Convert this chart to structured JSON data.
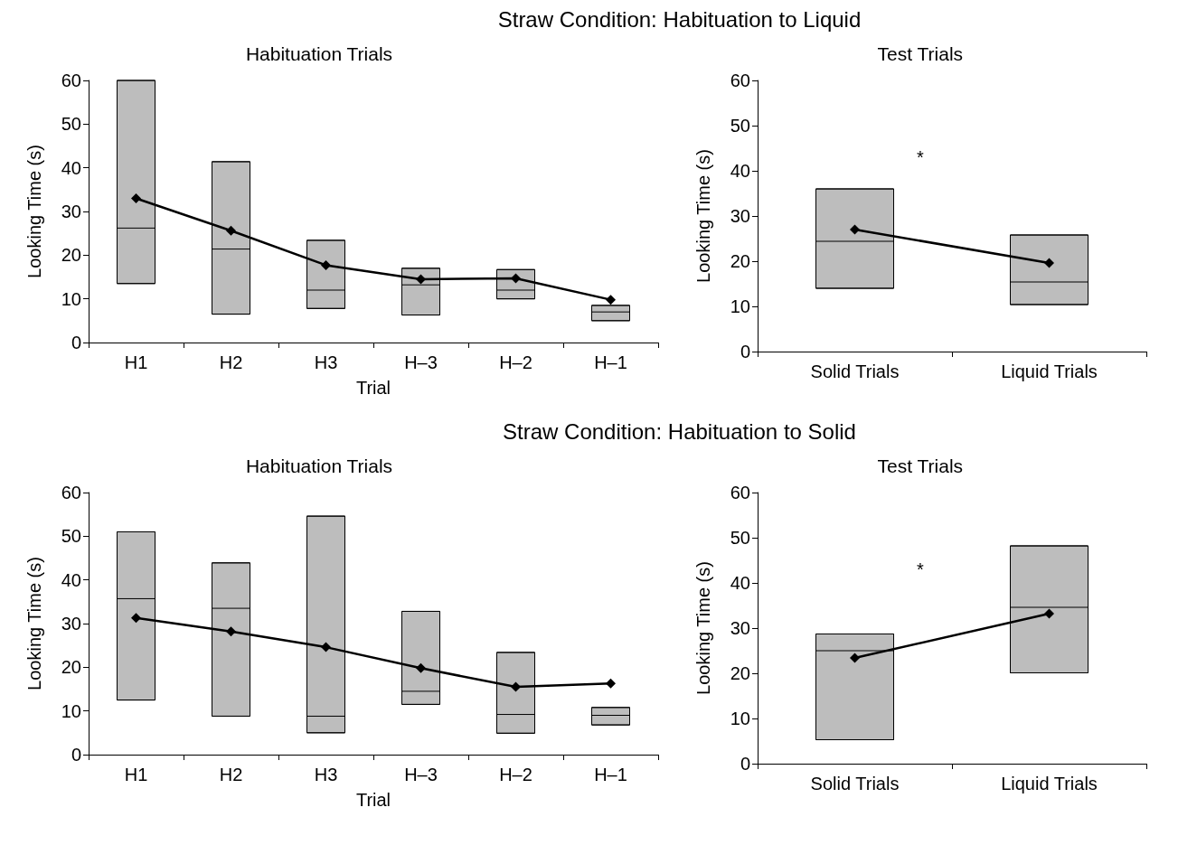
{
  "chart_data": [
    {
      "type": "box",
      "title": "Habituation Trials",
      "xlabel": "Trial",
      "ylabel": "Looking Time (s)",
      "annotations": [
        "Straw Condition: Habituation to Liquid"
      ],
      "categories": [
        "H1",
        "H2",
        "H3",
        "H–3",
        "H–2",
        "H–1"
      ],
      "ylim": [
        0,
        60
      ],
      "yticks": [
        0,
        10,
        20,
        30,
        40,
        50,
        60
      ],
      "marker": "diamond",
      "line_style": "solid",
      "series": [
        {
          "color": "#bdbdbd",
          "boxes": [
            {
              "low": 13.5,
              "q1": 13.5,
              "median": 26.2,
              "q3": 60,
              "high": 60
            },
            {
              "low": 6.5,
              "q1": 6.5,
              "median": 21.4,
              "q3": 41.4,
              "high": 41.4
            },
            {
              "low": 7.8,
              "q1": 7.8,
              "median": 12,
              "q3": 23.4,
              "high": 23.4
            },
            {
              "low": 6.3,
              "q1": 6.3,
              "median": 13.2,
              "q3": 17,
              "high": 17
            },
            {
              "low": 10,
              "q1": 10,
              "median": 12,
              "q3": 16.7,
              "high": 16.7
            },
            {
              "low": 5,
              "q1": 5,
              "median": 7,
              "q3": 8.5,
              "high": 8.5
            }
          ]
        },
        {
          "type": "line",
          "color": "#000000",
          "values": [
            33,
            25.6,
            17.7,
            14.5,
            14.7,
            9.8
          ]
        }
      ]
    },
    {
      "type": "box",
      "title": "Test Trials",
      "ylabel": "Looking Time (s)",
      "annotations": [
        "*"
      ],
      "categories": [
        "Solid Trials",
        "Liquid Trials"
      ],
      "ylim": [
        0,
        60
      ],
      "yticks": [
        0,
        10,
        20,
        30,
        40,
        50,
        60
      ],
      "marker": "diamond",
      "line_style": "solid",
      "series": [
        {
          "color": "#bdbdbd",
          "boxes": [
            {
              "low": 14,
              "q1": 14,
              "median": 24.4,
              "q3": 36,
              "high": 36
            },
            {
              "low": 10.4,
              "q1": 10.4,
              "median": 15.4,
              "q3": 25.8,
              "high": 25.8
            }
          ]
        },
        {
          "type": "line",
          "color": "#000000",
          "values": [
            27,
            19.6
          ]
        }
      ]
    },
    {
      "type": "box",
      "title": "Habituation Trials",
      "xlabel": "Trial",
      "ylabel": "Looking Time (s)",
      "annotations": [
        "Straw Condition: Habituation to Solid"
      ],
      "categories": [
        "H1",
        "H2",
        "H3",
        "H–3",
        "H–2",
        "H–1"
      ],
      "ylim": [
        0,
        60
      ],
      "yticks": [
        0,
        10,
        20,
        30,
        40,
        50,
        60
      ],
      "marker": "diamond",
      "line_style": "solid",
      "series": [
        {
          "color": "#bdbdbd",
          "boxes": [
            {
              "low": 12.5,
              "q1": 12.5,
              "median": 35.7,
              "q3": 51,
              "high": 51
            },
            {
              "low": 8.8,
              "q1": 8.8,
              "median": 33.5,
              "q3": 43.9,
              "high": 43.9
            },
            {
              "low": 5,
              "q1": 5,
              "median": 8.8,
              "q3": 54.6,
              "high": 54.6
            },
            {
              "low": 11.5,
              "q1": 11.5,
              "median": 14.5,
              "q3": 32.8,
              "high": 32.8
            },
            {
              "low": 4.9,
              "q1": 4.9,
              "median": 9.2,
              "q3": 23.4,
              "high": 23.4
            },
            {
              "low": 6.8,
              "q1": 6.8,
              "median": 9,
              "q3": 10.8,
              "high": 10.8
            }
          ]
        },
        {
          "type": "line",
          "color": "#000000",
          "values": [
            31.3,
            28.2,
            24.6,
            19.8,
            15.5,
            16.3
          ]
        }
      ]
    },
    {
      "type": "box",
      "title": "Test Trials",
      "ylabel": "Looking Time (s)",
      "annotations": [
        "*"
      ],
      "categories": [
        "Solid Trials",
        "Liquid Trials"
      ],
      "ylim": [
        0,
        60
      ],
      "yticks": [
        0,
        10,
        20,
        30,
        40,
        50,
        60
      ],
      "marker": "diamond",
      "line_style": "solid",
      "series": [
        {
          "color": "#bdbdbd",
          "boxes": [
            {
              "low": 5.3,
              "q1": 5.3,
              "median": 25,
              "q3": 28.7,
              "high": 28.7
            },
            {
              "low": 20.1,
              "q1": 20.1,
              "median": 34.6,
              "q3": 48.2,
              "high": 48.2
            }
          ]
        },
        {
          "type": "line",
          "color": "#000000",
          "values": [
            23.4,
            33.2
          ]
        }
      ]
    }
  ]
}
